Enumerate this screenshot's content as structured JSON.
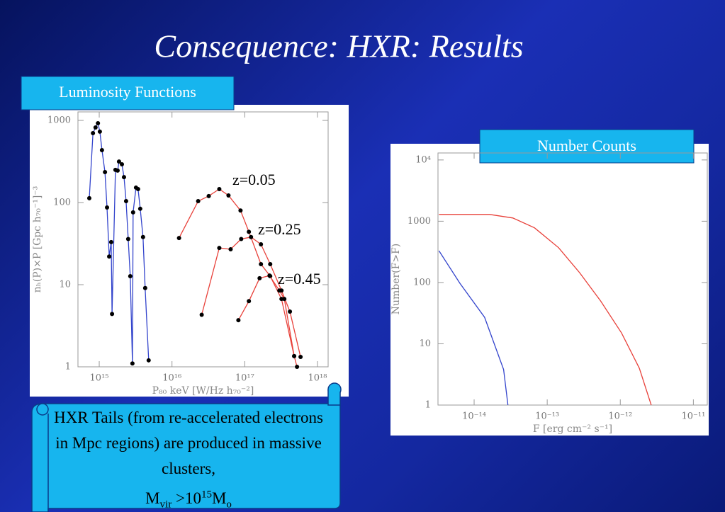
{
  "title": "Consequence: HXR: Results",
  "section_labels": [
    "Luminosity Functions",
    "Number Counts"
  ],
  "callout": {
    "text": "HXR Tails (from re-accelerated electrons in Mpc regions) are produced in massive clusters,",
    "formula": [
      "M",
      "vir",
      " >10",
      "15",
      "M",
      "o"
    ]
  },
  "chart_data": [
    {
      "type": "line",
      "x_log": true,
      "y_log": true,
      "markers": true,
      "marker_color": "#000000",
      "x_label": "P₈₀ keV [W/Hz h₇₀⁻²]",
      "y_label": "nₕ(P)×P [Gpc h₇₀⁻¹]⁻³",
      "xlim": [
        510000000000000.0,
        1.4e+18
      ],
      "ylim": [
        1,
        1270
      ],
      "xticks": [
        {
          "value": 1000000000000000.0,
          "label": "10¹⁵"
        },
        {
          "value": 1e+16,
          "label": "10¹⁶"
        },
        {
          "value": 1e+17,
          "label": "10¹⁷"
        },
        {
          "value": 1e+18,
          "label": "10¹⁸"
        }
      ],
      "yticks": [
        1,
        10,
        100,
        1000
      ],
      "series": [
        {
          "color": "#3344cc",
          "x": [
            730000000000000.0,
            820000000000000.0,
            890000000000000.0,
            960000000000000.0,
            1020000000000000.0,
            1090000000000000.0,
            1200000000000000.0,
            1280000000000000.0,
            1370000000000000.0,
            1460000000000000.0,
            1500000000000000.0,
            1670000000000000.0,
            1790000000000000.0,
            1870000000000000.0,
            2050000000000000.0,
            2190000000000000.0,
            2340000000000000.0,
            2500000000000000.0,
            2670000000000000.0,
            2860000000000000.0,
            2920000000000000.0,
            3200000000000000.0,
            3420000000000000.0,
            3660000000000000.0,
            4000000000000000.0,
            4280000000000000.0,
            4780000000000000.0
          ],
          "values": [
            113,
            700,
            820,
            925,
            730,
            435,
            235,
            87,
            22,
            33,
            4.4,
            250,
            245,
            316,
            292,
            204,
            104,
            36,
            12.7,
            1.1,
            76,
            152,
            146,
            84,
            38,
            9.1,
            1.2
          ]
        },
        {
          "name": "z=0.05",
          "color": "#e8413a",
          "x": [
            1.25e+16,
            2.29e+16,
            3.2e+16,
            4.47e+16,
            5.98e+16,
            8.75e+16,
            1.14e+17,
            1.67e+17,
            2.24e+17,
            3.2e+17,
            4.78e+17
          ],
          "values": [
            37,
            104,
            120,
            146,
            122,
            80,
            44,
            17.8,
            12.7,
            6.7,
            1.35
          ]
        },
        {
          "name": "z=0.25",
          "color": "#e8413a",
          "x": [
            2.56e+16,
            4.47e+16,
            6.4e+16,
            8.94e+16,
            1.22e+17,
            1.67e+17,
            2.24e+17,
            3.2e+17,
            4.18e+17,
            5.85e+17
          ],
          "values": [
            4.3,
            28,
            27,
            36,
            38,
            31,
            17.8,
            8.5,
            4.7,
            1.32
          ]
        },
        {
          "name": "z=0.45",
          "color": "#e8413a",
          "x": [
            8.18e+16,
            1.14e+17,
            1.6e+17,
            2.19e+17,
            2.99e+17,
            3.5e+17,
            4.78e+17,
            5.23e+17
          ],
          "values": [
            3.7,
            6.3,
            12,
            12.9,
            8.5,
            6.7,
            1.35,
            1
          ]
        }
      ]
    },
    {
      "type": "line",
      "x_log": true,
      "y_log": true,
      "markers": false,
      "x_label": "F [erg cm⁻² s⁻¹]",
      "y_label": "Number(F>F)",
      "xlim": [
        3.2e-15,
        1.55e-11
      ],
      "ylim": [
        1,
        13000
      ],
      "xticks": [
        {
          "value": 1e-14,
          "label": "10⁻¹⁴"
        },
        {
          "value": 1e-13,
          "label": "10⁻¹³"
        },
        {
          "value": 1e-12,
          "label": "10⁻¹²"
        },
        {
          "value": 1e-11,
          "label": "10⁻¹¹"
        }
      ],
      "yticks": [
        1,
        10,
        100,
        1000,
        {
          "value": 10000,
          "label": "10⁴"
        }
      ],
      "series": [
        {
          "color": "#e8413a",
          "x": [
            3.3e-15,
            1.63e-14,
            3.38e-14,
            6.7e-14,
            1.43e-13,
            2.77e-13,
            5.38e-13,
            1.04e-12,
            1.82e-12,
            2.65e-12
          ],
          "values": [
            1290,
            1290,
            1130,
            780,
            370,
            145,
            50,
            15,
            4.0,
            1
          ]
        },
        {
          "color": "#3344cc",
          "x": [
            3.3e-15,
            6.4e-15,
            1.39e-14,
            2.53e-14,
            2.9e-14
          ],
          "values": [
            330,
            97,
            27,
            3.8,
            1
          ]
        }
      ]
    }
  ]
}
